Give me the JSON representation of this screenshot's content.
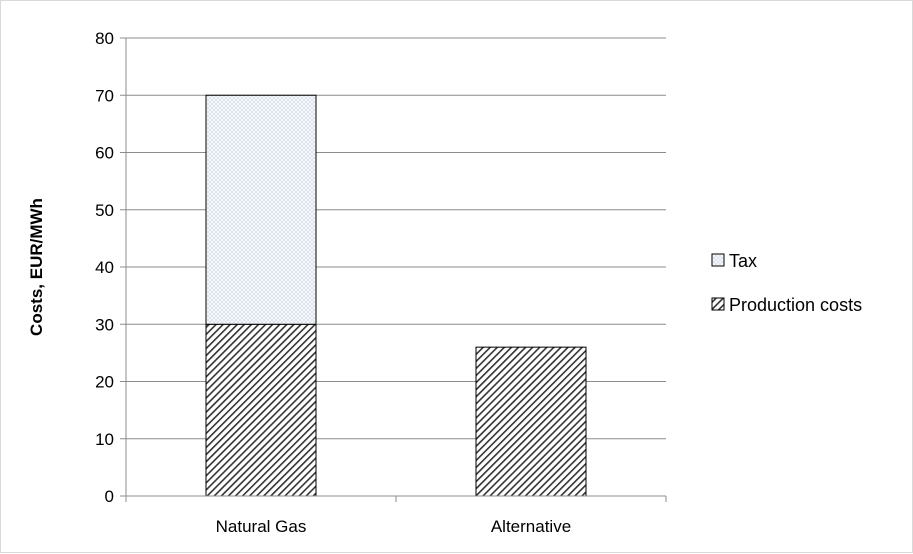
{
  "chart_data": {
    "type": "bar",
    "stacked": true,
    "title": "",
    "xlabel": "",
    "ylabel": "Costs, EUR/MWh",
    "ylim": [
      0,
      80
    ],
    "yticks": [
      0,
      10,
      20,
      30,
      40,
      50,
      60,
      70,
      80
    ],
    "categories": [
      "Natural Gas",
      "Alternative"
    ],
    "series": [
      {
        "name": "Production costs",
        "values": [
          30,
          26
        ],
        "fill": "diagonal-hatch",
        "color": "#404040"
      },
      {
        "name": "Tax",
        "values": [
          40,
          0
        ],
        "fill": "dotted",
        "color": "#eef2f7"
      }
    ],
    "grid": true,
    "legend_position": "right"
  }
}
